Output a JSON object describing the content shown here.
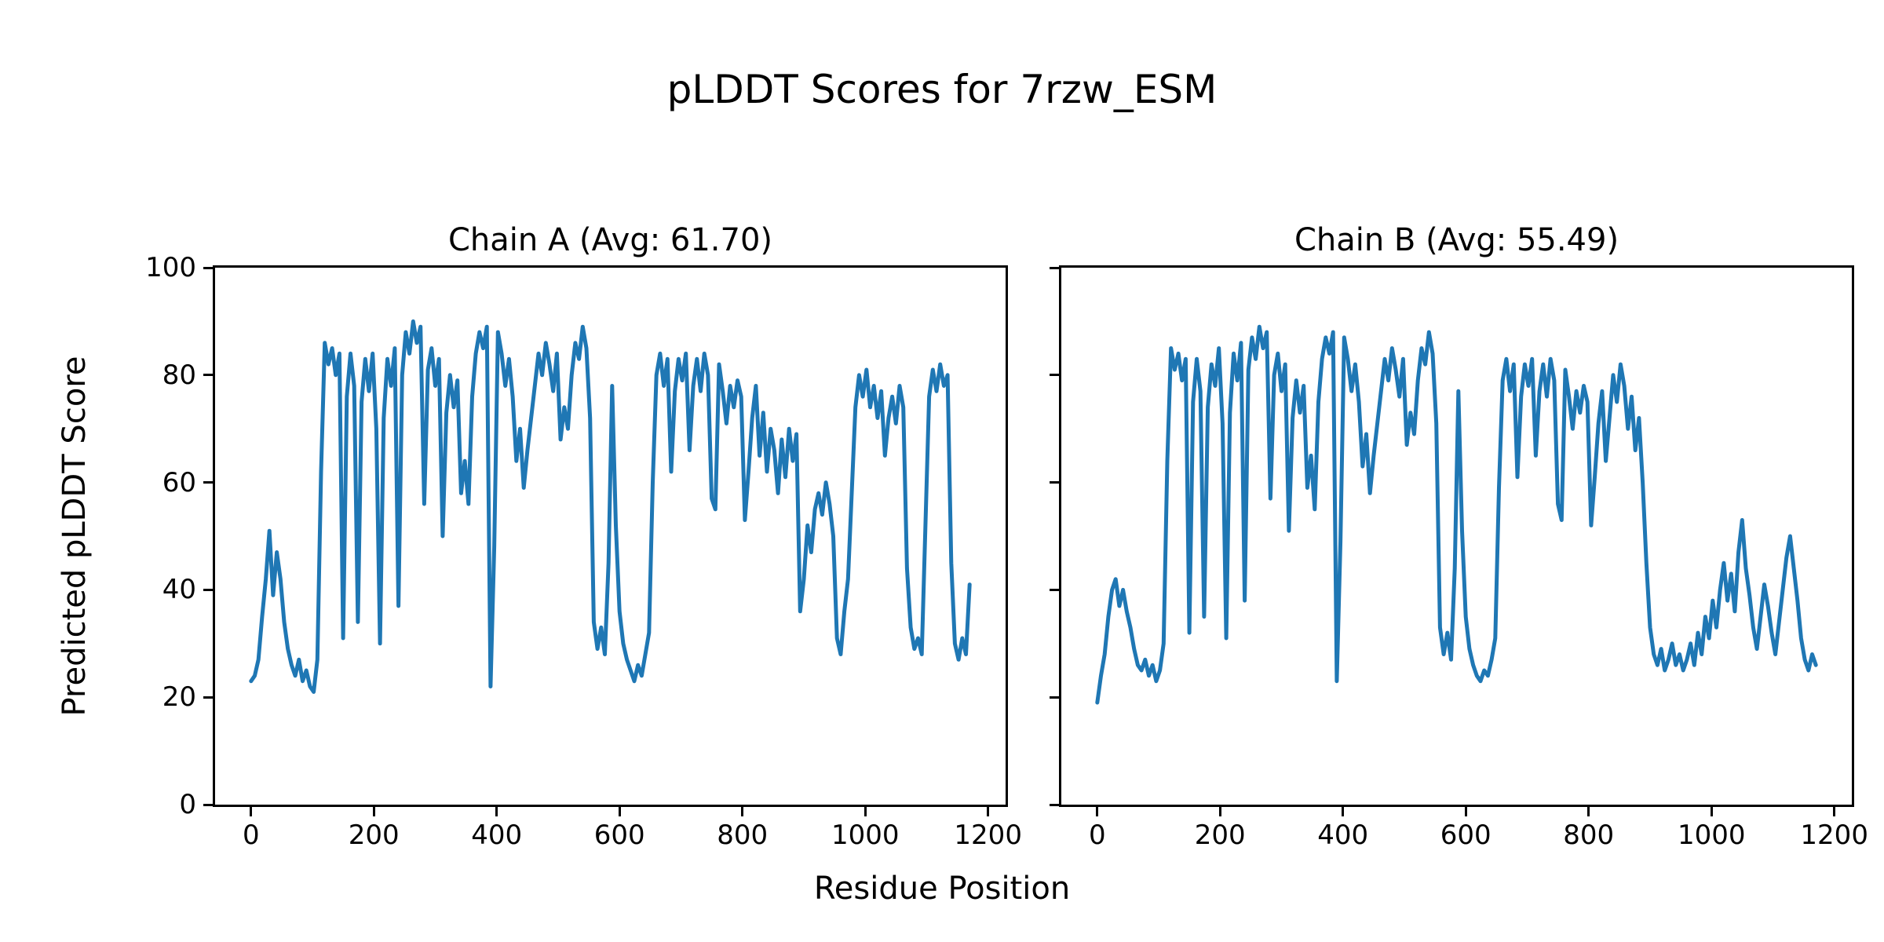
{
  "figure": {
    "title": "pLDDT Scores for 7rzw_ESM",
    "xlabel": "Residue Position",
    "ylabel": "Predicted pLDDT Score"
  },
  "chart_data": {
    "type": "line",
    "line_color": "#1f77b4",
    "text_color": "#000000",
    "grid": false,
    "legend": null,
    "xlim": [
      -58.5,
      1228.5
    ],
    "ylim": [
      0,
      100
    ],
    "xticks": [
      0,
      200,
      400,
      600,
      800,
      1000,
      1200
    ],
    "yticks": [
      0,
      20,
      40,
      60,
      80,
      100
    ],
    "x_step": 6,
    "subplots": [
      {
        "chain": "A",
        "title": "Chain A (Avg: 61.70)",
        "avg": 61.7,
        "values": [
          23,
          24,
          27,
          35,
          42,
          51,
          39,
          47,
          42,
          34,
          29,
          26,
          24,
          27,
          23,
          25,
          22,
          21,
          27,
          62,
          86,
          82,
          85,
          80,
          84,
          31,
          76,
          84,
          78,
          34,
          75,
          83,
          77,
          84,
          70,
          30,
          72,
          83,
          78,
          85,
          37,
          80,
          88,
          84,
          90,
          86,
          89,
          56,
          81,
          85,
          78,
          83,
          50,
          73,
          80,
          74,
          79,
          58,
          64,
          56,
          76,
          84,
          88,
          85,
          89,
          22,
          48,
          88,
          84,
          78,
          83,
          76,
          64,
          70,
          59,
          66,
          72,
          78,
          84,
          80,
          86,
          82,
          77,
          84,
          68,
          74,
          70,
          80,
          86,
          83,
          89,
          85,
          72,
          34,
          29,
          33,
          28,
          45,
          78,
          52,
          36,
          30,
          27,
          25,
          23,
          26,
          24,
          28,
          32,
          60,
          80,
          84,
          78,
          83,
          62,
          77,
          83,
          79,
          84,
          66,
          78,
          83,
          77,
          84,
          80,
          57,
          55,
          82,
          77,
          71,
          78,
          74,
          79,
          76,
          53,
          62,
          72,
          78,
          65,
          73,
          62,
          70,
          66,
          58,
          68,
          61,
          70,
          64,
          69,
          36,
          42,
          52,
          47,
          55,
          58,
          54,
          60,
          56,
          50,
          31,
          28,
          36,
          42,
          58,
          74,
          80,
          76,
          81,
          74,
          78,
          72,
          77,
          65,
          72,
          76,
          71,
          78,
          74,
          44,
          33,
          29,
          31,
          28,
          52,
          76,
          81,
          77,
          82,
          78,
          80,
          45,
          30,
          27,
          31,
          28,
          41
        ]
      },
      {
        "chain": "B",
        "title": "Chain B (Avg: 55.49)",
        "avg": 55.49,
        "values": [
          19,
          24,
          28,
          35,
          40,
          42,
          37,
          40,
          36,
          33,
          29,
          26,
          25,
          27,
          24,
          26,
          23,
          25,
          30,
          64,
          85,
          81,
          84,
          79,
          83,
          32,
          75,
          83,
          77,
          35,
          74,
          82,
          78,
          85,
          71,
          31,
          73,
          84,
          79,
          86,
          38,
          81,
          87,
          83,
          89,
          85,
          88,
          57,
          80,
          84,
          77,
          82,
          51,
          72,
          79,
          73,
          78,
          59,
          65,
          55,
          75,
          83,
          87,
          84,
          88,
          23,
          49,
          87,
          83,
          77,
          82,
          75,
          63,
          69,
          58,
          65,
          71,
          77,
          83,
          79,
          85,
          81,
          76,
          83,
          67,
          73,
          69,
          79,
          85,
          82,
          88,
          84,
          71,
          33,
          28,
          32,
          27,
          44,
          77,
          51,
          35,
          29,
          26,
          24,
          23,
          25,
          24,
          27,
          31,
          59,
          79,
          83,
          77,
          82,
          61,
          76,
          82,
          78,
          83,
          65,
          77,
          82,
          76,
          83,
          79,
          56,
          53,
          81,
          76,
          70,
          77,
          73,
          78,
          75,
          52,
          61,
          71,
          77,
          64,
          72,
          80,
          75,
          82,
          78,
          70,
          76,
          66,
          72,
          60,
          45,
          33,
          28,
          26,
          29,
          25,
          27,
          30,
          26,
          28,
          25,
          27,
          30,
          26,
          32,
          28,
          35,
          31,
          38,
          33,
          40,
          45,
          38,
          43,
          36,
          47,
          53,
          44,
          39,
          33,
          29,
          35,
          41,
          37,
          32,
          28,
          34,
          40,
          46,
          50,
          44,
          38,
          31,
          27,
          25,
          28,
          26
        ]
      }
    ]
  }
}
